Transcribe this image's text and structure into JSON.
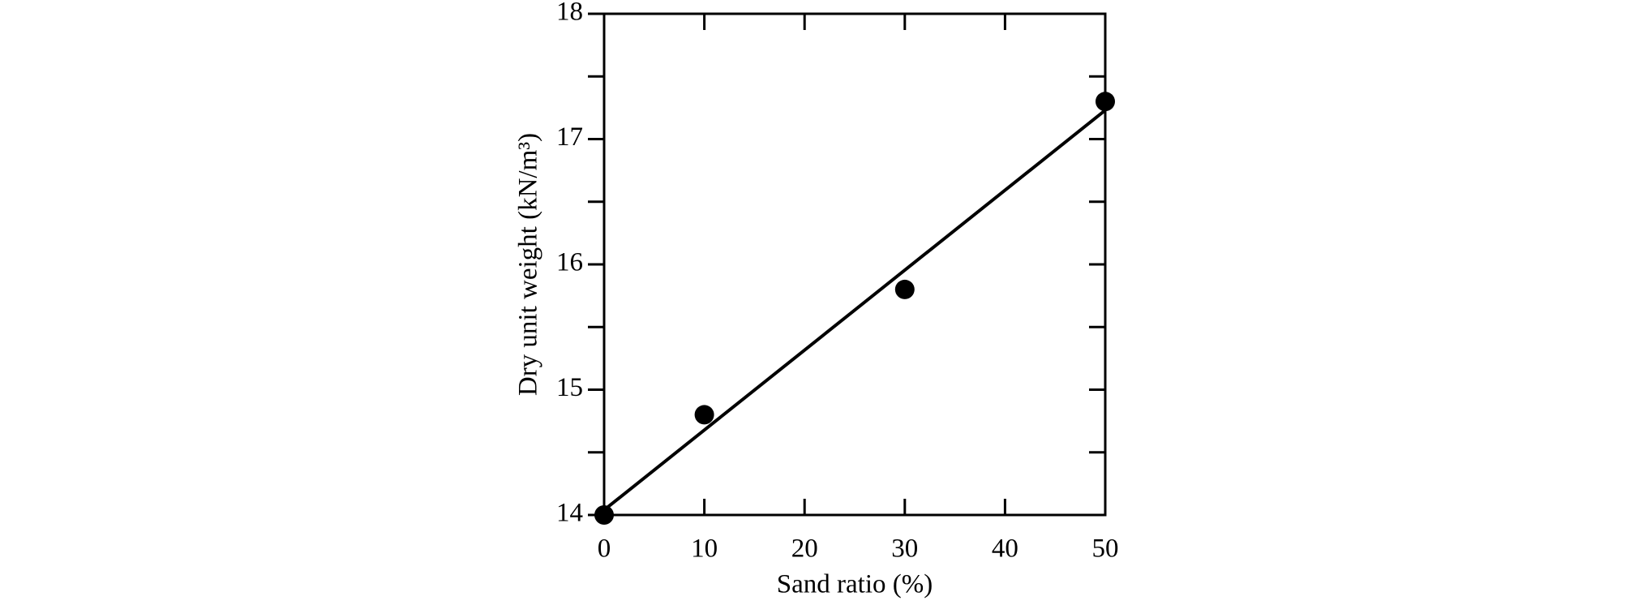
{
  "chart_data": {
    "type": "scatter",
    "x_label": "Sand ratio (%)",
    "y_label": "Dry unit weight (kN/m³)",
    "series": [
      {
        "x": [
          0,
          10,
          30,
          50
        ],
        "values": [
          14.0,
          14.8,
          15.8,
          17.3
        ],
        "color": "#000000"
      }
    ],
    "fit_line": {
      "x": [
        0,
        50
      ],
      "values": [
        14.04,
        17.23
      ],
      "color": "#000000"
    },
    "xlim": [
      0,
      50
    ],
    "xticks": [
      0,
      10,
      20,
      30,
      40,
      50
    ],
    "ylim": [
      14,
      18
    ],
    "yticks": [
      14,
      15,
      16,
      17,
      18
    ],
    "yminor": [
      14.5,
      15.5,
      16.5,
      17.5
    ]
  }
}
